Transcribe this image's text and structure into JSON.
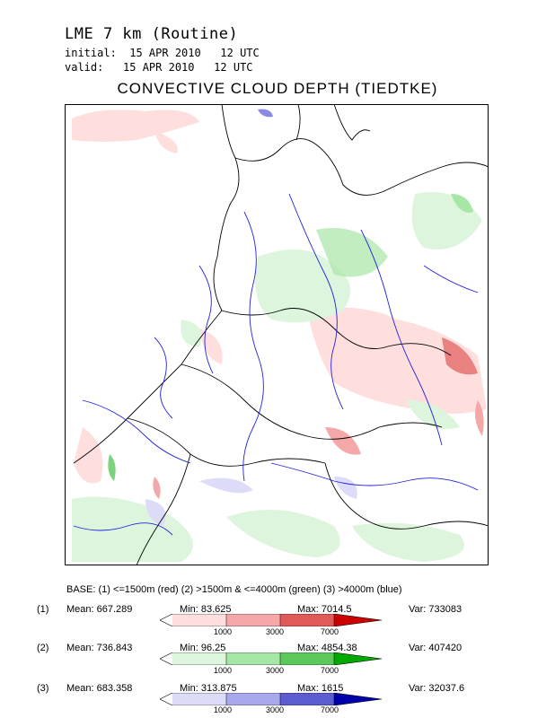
{
  "header": {
    "title": "LME 7 km (Routine)",
    "initial": "initial:  15 APR 2010   12 UTC",
    "valid": "valid:   15 APR 2010   12 UTC",
    "map_title": "CONVECTIVE CLOUD DEPTH (TIEDTKE)"
  },
  "base_text": "BASE: (1) <=1500m (red)   (2) >1500m & <=4000m (green)   (3) >4000m (blue)",
  "stats": [
    {
      "num": "(1)",
      "mean": "Mean: 667.289",
      "min": "Min: 83.625",
      "max": "Max: 7014.5",
      "var": "Var: 733083",
      "colors": [
        "#ffdede",
        "#f4a8a8",
        "#e05a5a",
        "#cc0000"
      ]
    },
    {
      "num": "(2)",
      "mean": "Mean: 736.843",
      "min": "Min: 96.25",
      "max": "Max: 4854.38",
      "var": "Var: 407420",
      "colors": [
        "#dcf5dc",
        "#a6e6a6",
        "#5cc85c",
        "#00aa00"
      ]
    },
    {
      "num": "(3)",
      "mean": "Mean: 683.358",
      "min": "Min: 313.875",
      "max": "Max: 1615",
      "var": "Var: 32037.6",
      "colors": [
        "#dcdcf8",
        "#a8a8ec",
        "#5c5cd0",
        "#0000aa"
      ]
    }
  ],
  "ticks": [
    "1000",
    "3000",
    "7000"
  ],
  "colors": {
    "coast": "#000000",
    "rivers": "#2222dd"
  }
}
